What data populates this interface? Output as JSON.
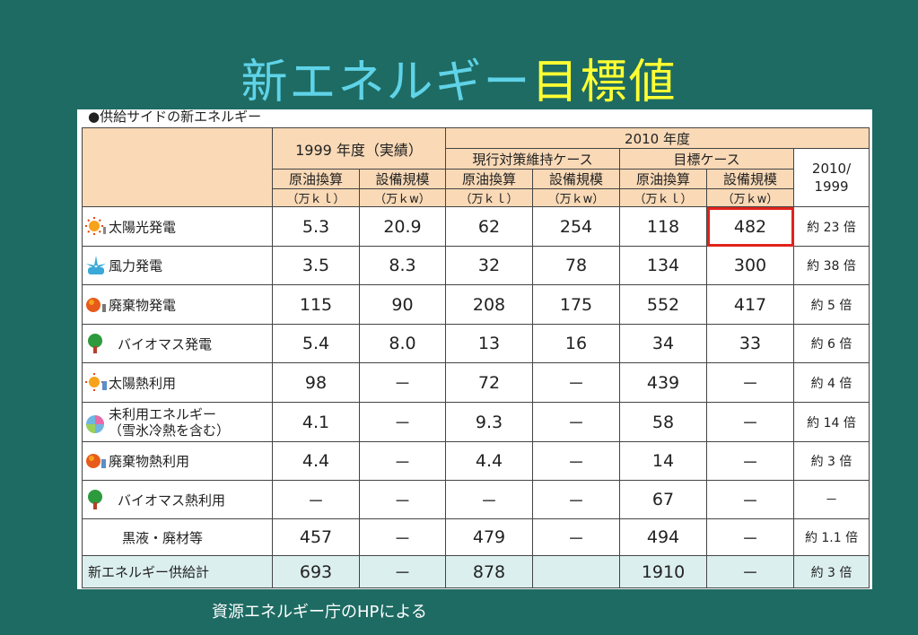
{
  "title": {
    "part1": "新エネルギー",
    "part2": "目標値"
  },
  "subtitle": "●供給サイドの新エネルギー",
  "header": {
    "y1999": "1999 年度（実績）",
    "y2010": "2010 年度",
    "current_case": "現行対策維持ケース",
    "target_case": "目標ケース",
    "ratio_top": "2010/",
    "ratio_bottom": "1999",
    "crude": "原油換算",
    "capacity": "設備規模",
    "unit_kl": "（万ｋｌ）",
    "unit_kw": "（万ｋw）"
  },
  "rows": [
    {
      "label": "太陽光発電",
      "icon": "sun-icon",
      "v": [
        "5.3",
        "20.9",
        "62",
        "254",
        "118",
        "482",
        "約 23 倍"
      ]
    },
    {
      "label": "風力発電",
      "icon": "wind-turbine-icon",
      "v": [
        "3.5",
        "8.3",
        "32",
        "78",
        "134",
        "300",
        "約 38 倍"
      ]
    },
    {
      "label": "廃棄物発電",
      "icon": "waste-icon",
      "v": [
        "115",
        "90",
        "208",
        "175",
        "552",
        "417",
        "約 5 倍"
      ]
    },
    {
      "label": "バイオマス発電",
      "icon": "tree-icon",
      "v": [
        "5.4",
        "8.0",
        "13",
        "16",
        "34",
        "33",
        "約 6 倍"
      ]
    },
    {
      "label": "太陽熱利用",
      "icon": "sun-heat-icon",
      "v": [
        "98",
        "－",
        "72",
        "－",
        "439",
        "－",
        "約 4 倍"
      ]
    },
    {
      "label": "未利用エネルギー",
      "label2": "（雪氷冷熱を含む）",
      "icon": "recycle-icon",
      "v": [
        "4.1",
        "－",
        "9.3",
        "－",
        "58",
        "－",
        "約 14 倍"
      ]
    },
    {
      "label": "廃棄物熱利用",
      "icon": "waste-heat-icon",
      "v": [
        "4.4",
        "－",
        "4.4",
        "－",
        "14",
        "－",
        "約 3 倍"
      ]
    },
    {
      "label": "バイオマス熱利用",
      "icon": "tree-icon",
      "v": [
        "－",
        "－",
        "－",
        "－",
        "67",
        "－",
        "－"
      ]
    },
    {
      "label": "黒液・廃材等",
      "icon": "",
      "v": [
        "457",
        "－",
        "479",
        "－",
        "494",
        "－",
        "約 1.1 倍"
      ]
    }
  ],
  "total": {
    "label": "新エネルギー供給計",
    "v": [
      "693",
      "－",
      "878",
      "",
      "1910",
      "－",
      "約 3 倍"
    ]
  },
  "source": "資源エネルギー庁のHPによる"
}
